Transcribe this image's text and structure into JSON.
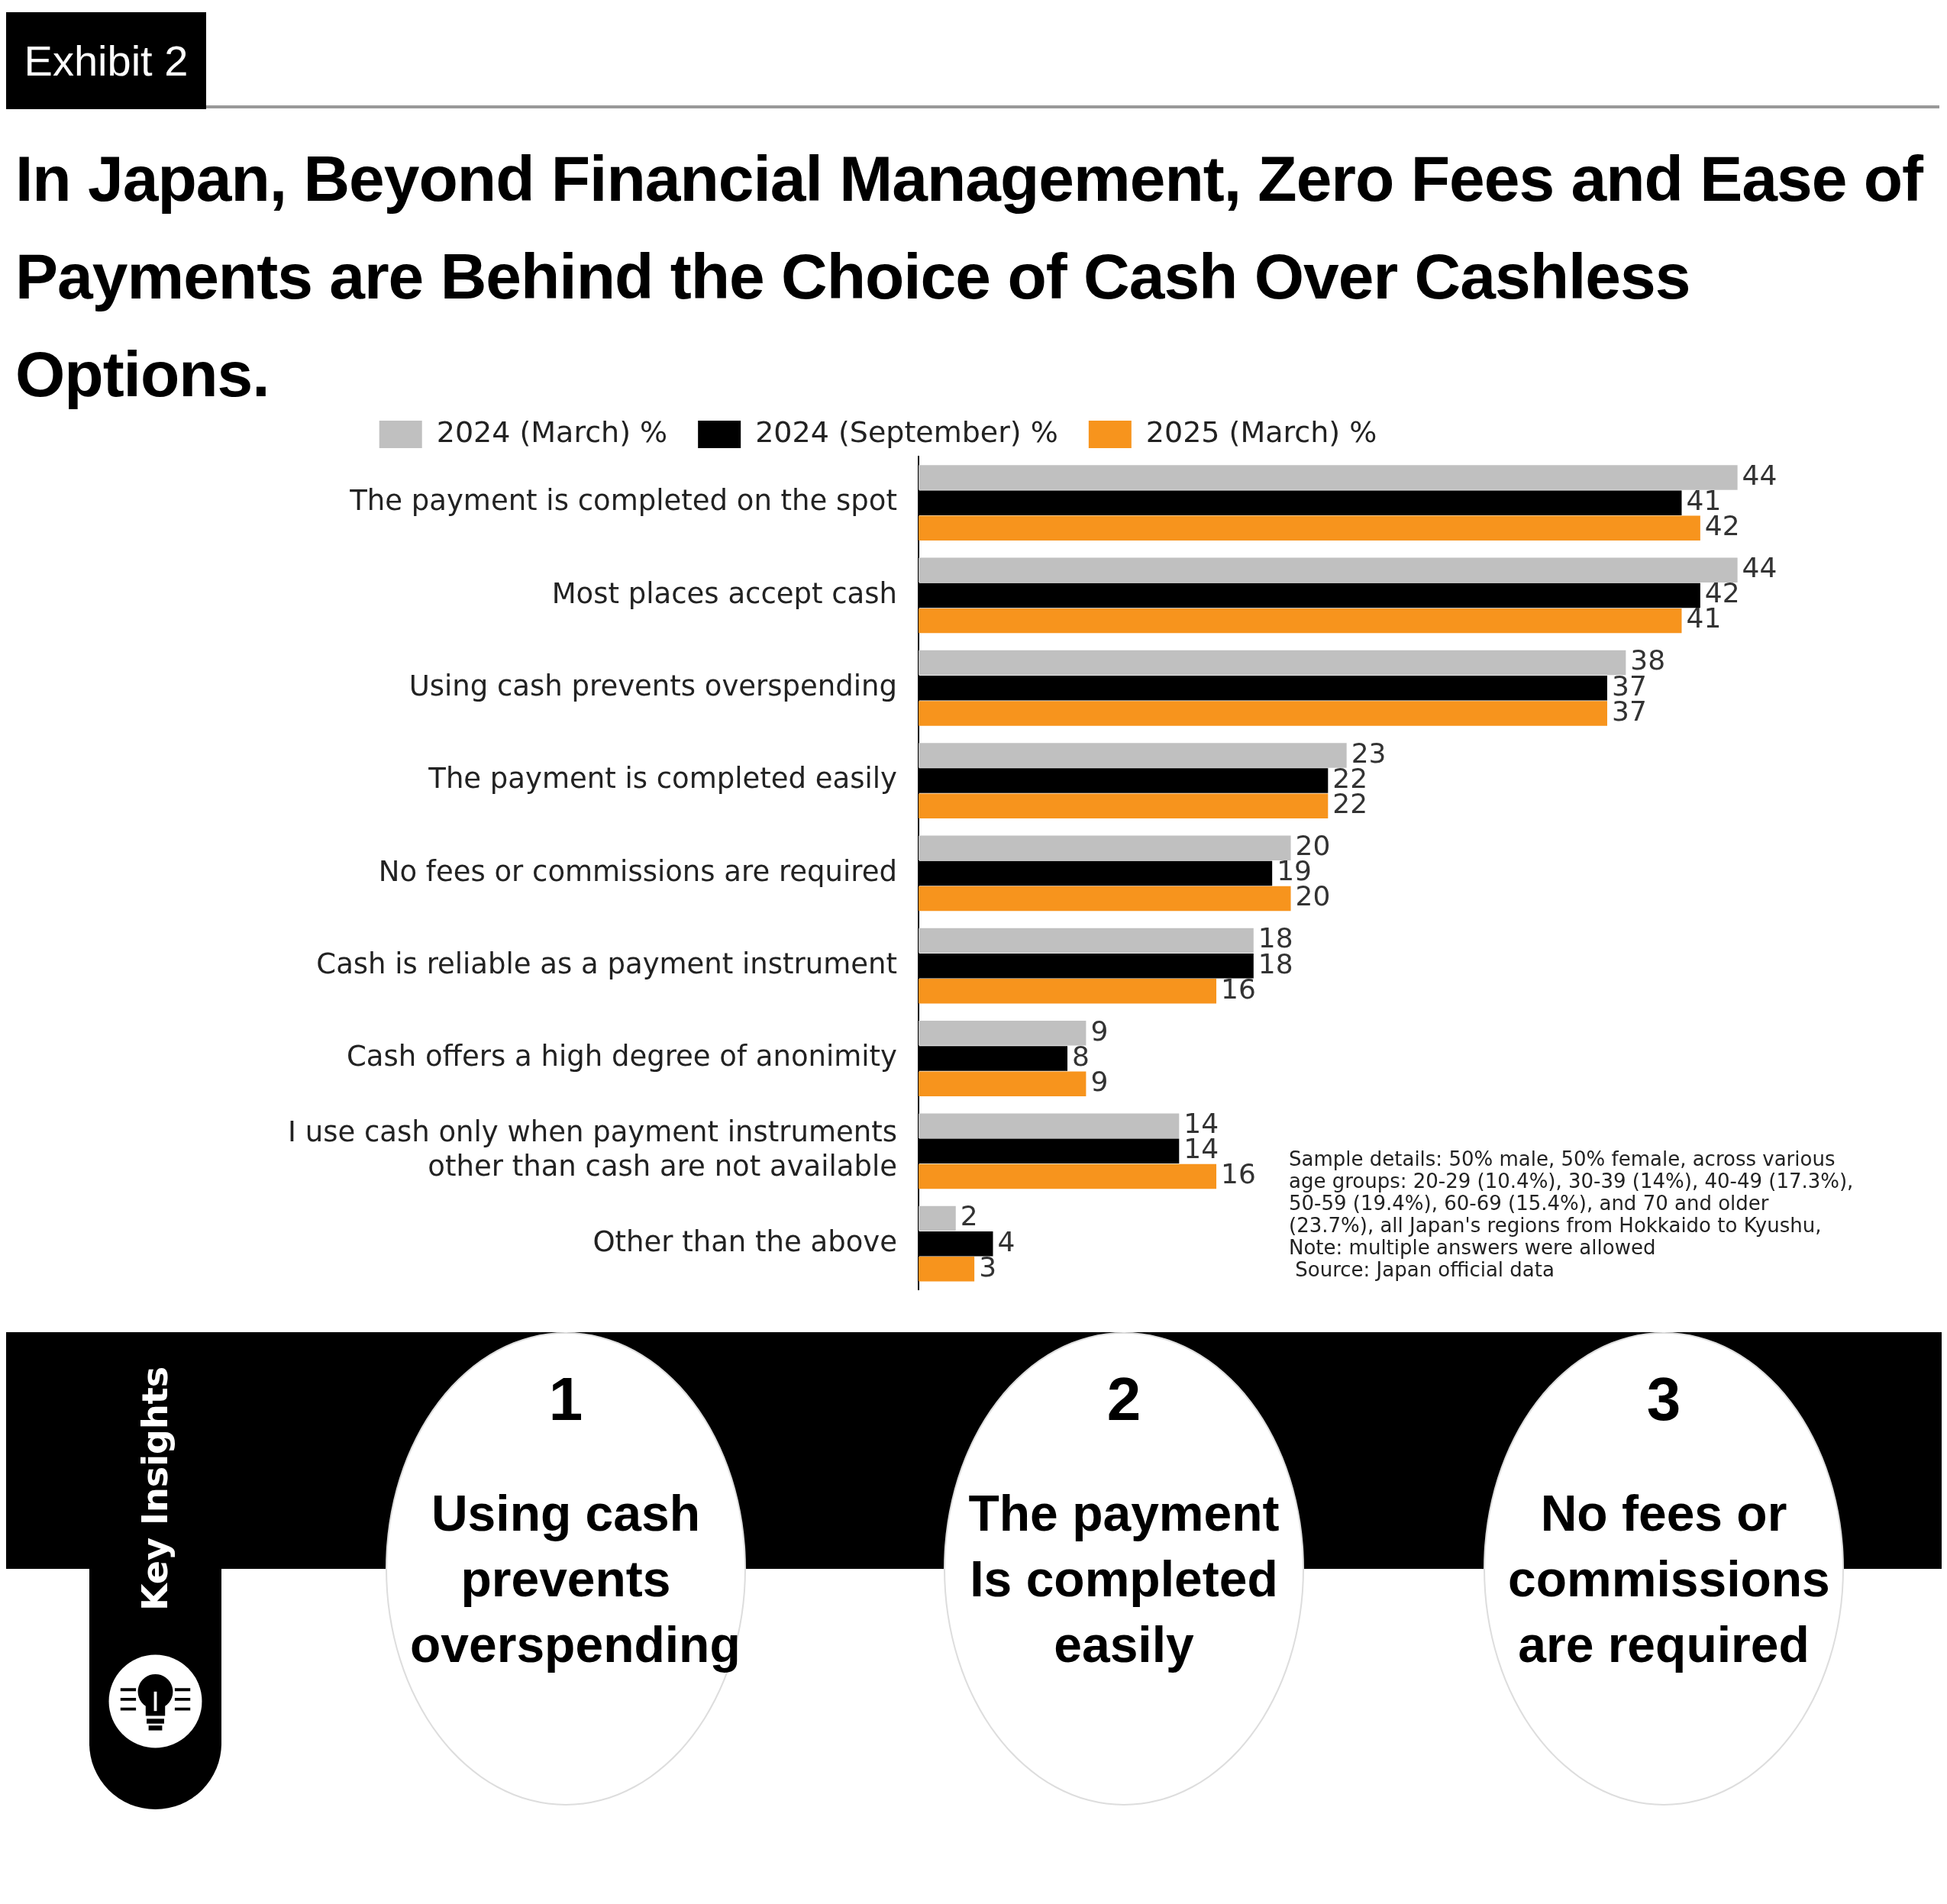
{
  "chart_data": {
    "type": "bar",
    "orientation": "horizontal",
    "subtitle": "Exhibit 2",
    "title": "In Japan, Beyond Financial Management, Zero Fees and Ease of Payments are Behind the Choice of Cash Over Cashless Options.",
    "categories": [
      "The payment is completed on the spot",
      "Most places accept cash",
      "Using cash prevents overspending",
      "The payment is completed easily",
      "No fees or commissions are required",
      "Cash is reliable as a payment instrument",
      "Cash offers a high degree of anonimity",
      "I use cash only when payment instruments other than cash are not available",
      "Other than the above"
    ],
    "series": [
      {
        "name": "2024 (March) %",
        "color": "#c0c0c0",
        "values": [
          44,
          44,
          38,
          23,
          20,
          18,
          9,
          14,
          2
        ]
      },
      {
        "name": "2024 (September) %",
        "color": "#000000",
        "values": [
          41,
          42,
          37,
          22,
          19,
          18,
          8,
          14,
          4
        ]
      },
      {
        "name": "2025 (March) %",
        "color": "#f7941d",
        "values": [
          42,
          41,
          37,
          22,
          20,
          16,
          9,
          16,
          3
        ]
      }
    ],
    "tick_labels": "y",
    "legend": "top",
    "data_labels": true,
    "annotations": [
      "Sample details: 50% male, 50% female, across various age groups: 20-29 (10.4%), 30-39 (14%), 40-49 (17.3%), 50-59 (19.4%), 60-69 (15.4%), and 70 and older (23.7%), all Japan's regions from Hokkaido to Kyushu, Note: multiple answers were allowed",
      "Source: Japan official data",
      "Key Insights",
      "1",
      "Using cash prevents overspending",
      "2",
      "The payment Is completed easily",
      "3",
      "No fees or commissions are required"
    ]
  }
}
